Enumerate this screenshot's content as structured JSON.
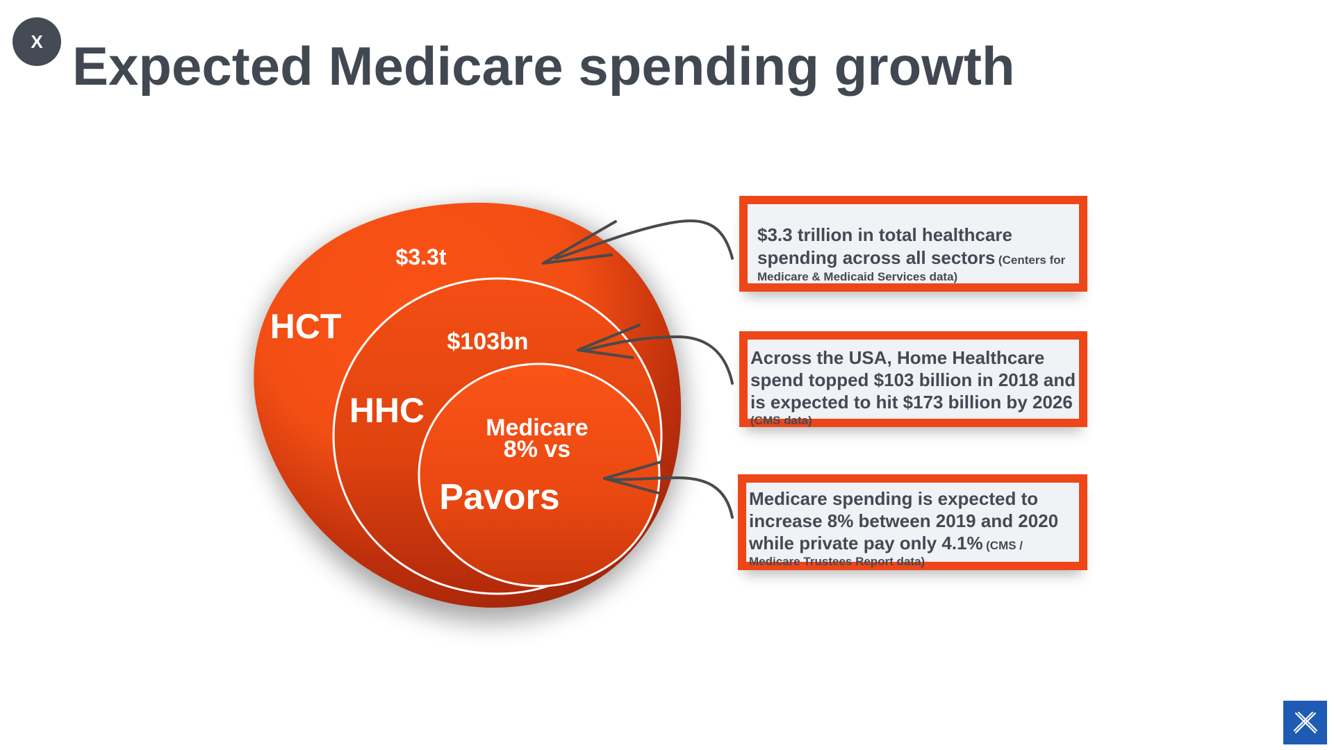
{
  "close_label": "X",
  "title": "Expected Medicare spending growth",
  "colors": {
    "accent": "#ee4618",
    "title": "#424852",
    "logo": "#1f5bb4"
  },
  "circles": {
    "outer": {
      "label": "HCT",
      "value": "$3.3t"
    },
    "middle": {
      "label": "HHC",
      "value": "$103bn"
    },
    "inner": {
      "label_line1": "Medicare",
      "label_line2": "8% vs",
      "label_line3": "Pavors"
    }
  },
  "notes": [
    {
      "main": "$3.3 trillion in total healthcare spending across all sectors",
      "src": "(Centers for Medicare & Medicaid Services data)"
    },
    {
      "main": "Across the USA, Home Healthcare spend topped $103 billion in 2018 and is expected to hit $173 billion by 2026",
      "src": "(CMS data)"
    },
    {
      "main": "Medicare spending is expected to increase 8% between 2019 and 2020 while private pay only 4.1%",
      "src": "(CMS / Medicare Trustees Report data)"
    }
  ],
  "logo_icon": "x-logo-icon"
}
